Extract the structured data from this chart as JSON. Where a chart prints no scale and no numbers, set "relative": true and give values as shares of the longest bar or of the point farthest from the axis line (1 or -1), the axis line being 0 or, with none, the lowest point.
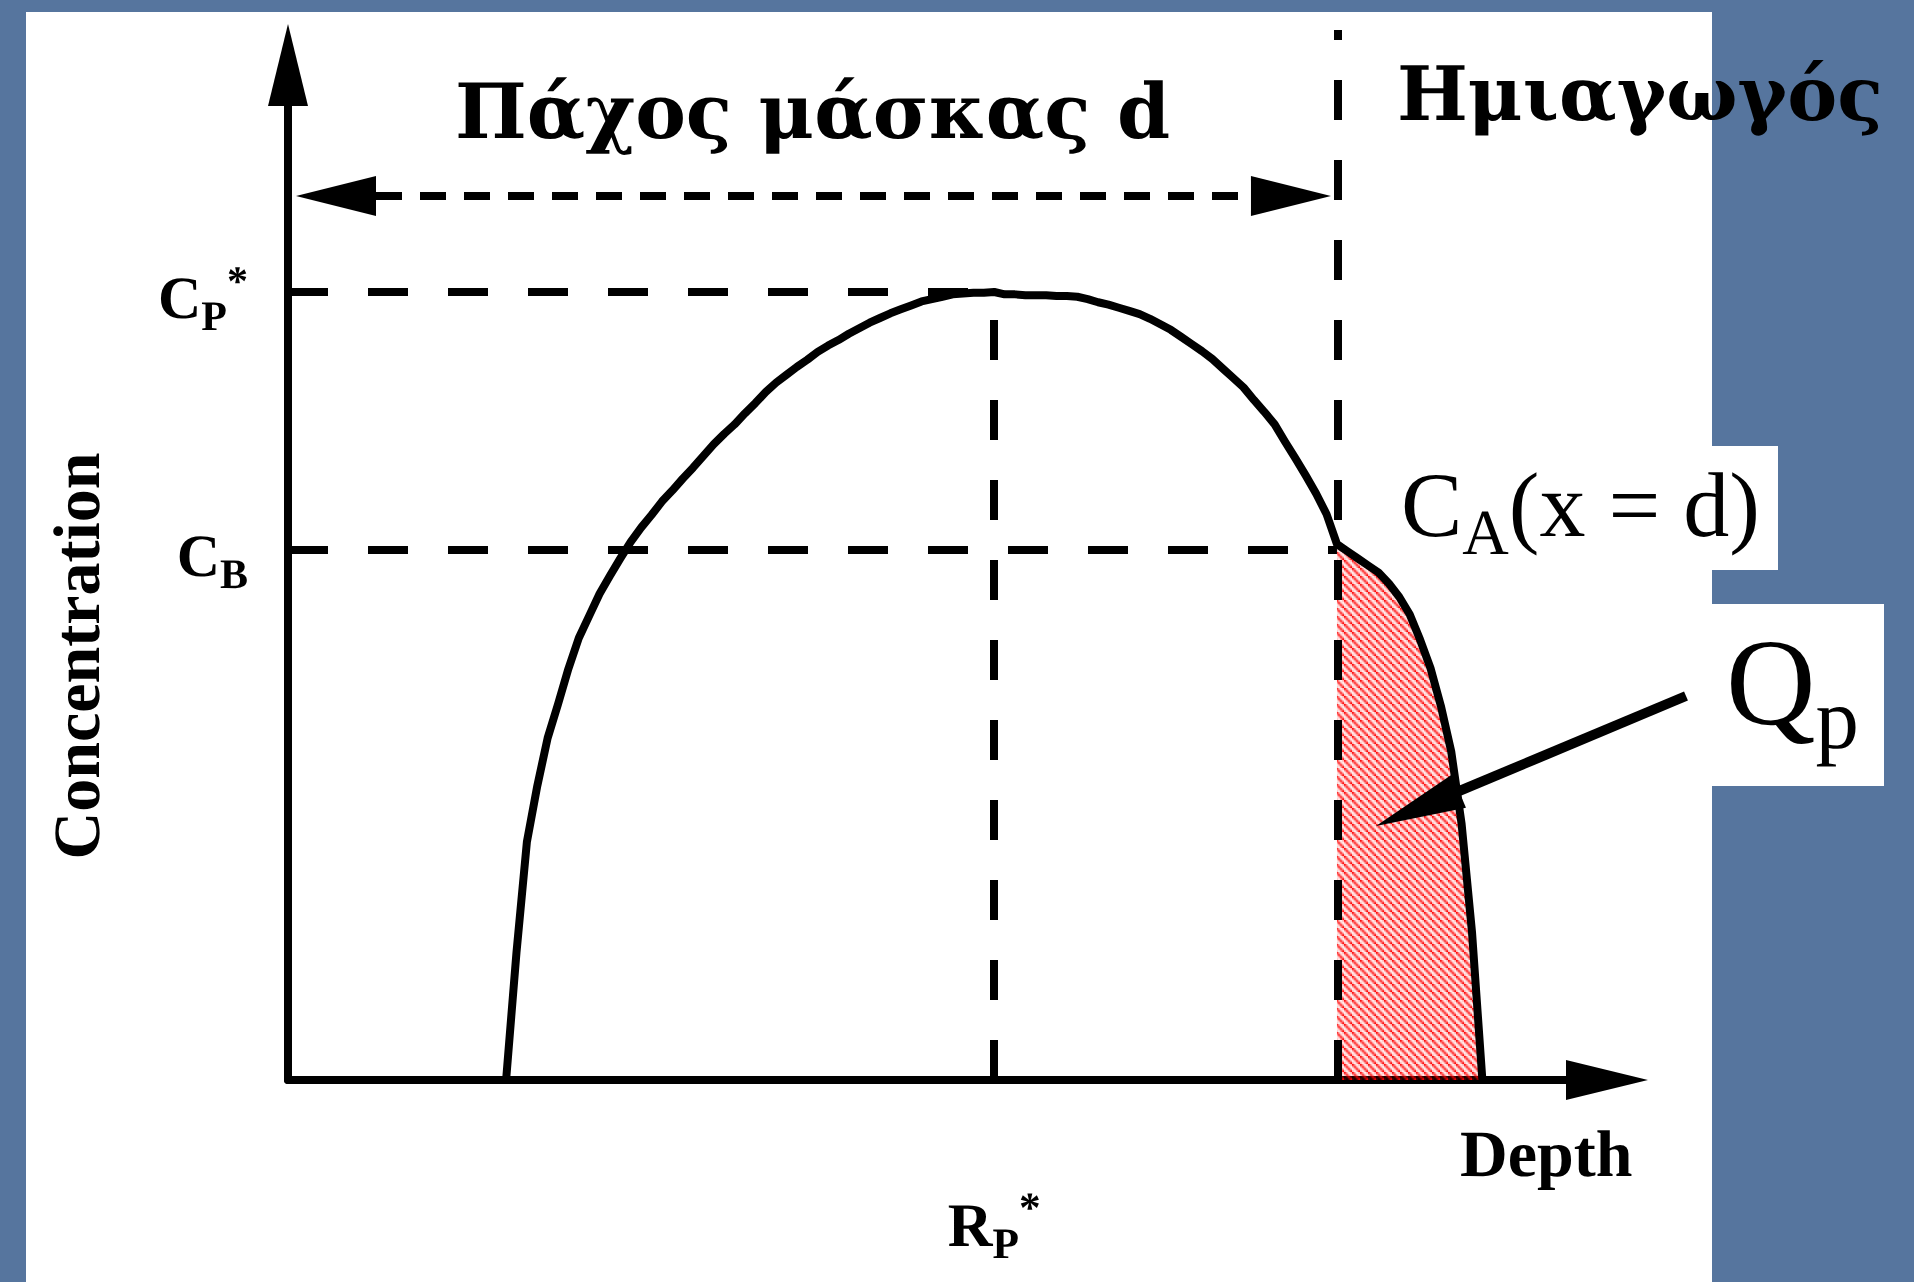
{
  "chart_data": {
    "type": "line",
    "xlabel": "Depth",
    "ylabel": "Concentration",
    "relative": true,
    "marker": "none",
    "line_style": "solid",
    "categories": [
      null,
      null,
      null,
      null,
      null,
      null,
      null,
      null,
      null,
      null,
      null,
      null,
      null,
      null,
      null,
      null,
      null,
      null,
      null,
      null,
      null,
      null,
      null,
      null,
      null,
      null,
      null,
      null,
      null,
      null,
      null,
      null,
      null,
      null,
      null,
      null,
      null,
      null,
      null,
      null,
      null,
      null,
      null,
      null,
      null,
      null,
      null,
      null,
      null,
      null,
      null,
      null,
      null,
      null,
      null,
      null,
      null,
      null,
      null,
      null,
      null,
      null,
      null,
      null,
      null,
      null,
      null,
      null,
      null,
      null,
      null,
      null,
      null,
      null,
      null,
      null,
      null,
      null,
      null,
      null,
      null,
      null,
      null,
      null,
      null,
      null,
      null,
      null,
      null,
      null,
      null,
      null,
      null,
      null,
      null,
      null,
      null,
      null,
      null,
      null,
      null,
      null,
      null,
      null,
      null,
      null,
      null,
      null,
      null,
      null,
      null,
      null,
      null,
      null,
      null,
      null,
      null,
      null,
      null,
      null,
      null,
      null,
      null,
      null,
      null,
      null,
      null,
      null
    ],
    "series": [
      {
        "color": "#000000",
        "values": [
          null,
          null,
          null,
          null,
          null,
          null,
          null,
          null,
          null,
          null,
          null,
          null,
          null,
          null,
          null,
          null,
          null,
          null,
          null,
          null,
          null,
          0,
          0.162,
          0.302,
          0.373,
          0.434,
          0.477,
          0.522,
          0.561,
          0.589,
          0.617,
          0.64,
          0.662,
          0.683,
          0.701,
          0.717,
          0.734,
          0.748,
          0.763,
          0.777,
          0.792,
          0.807,
          0.82,
          0.832,
          0.846,
          0.859,
          0.873,
          0.885,
          0.895,
          0.905,
          0.914,
          0.924,
          0.932,
          0.939,
          0.947,
          0.954,
          0.961,
          0.967,
          0.973,
          0.978,
          0.983,
          0.988,
          0.991,
          0.994,
          0.997,
          0.998,
          0.999,
          0.999,
          1,
          0.997,
          0.997,
          0.996,
          0.996,
          0.996,
          0.995,
          0.995,
          0.994,
          0.991,
          0.987,
          0.984,
          0.98,
          0.976,
          0.972,
          0.966,
          0.959,
          0.952,
          0.943,
          0.934,
          0.925,
          0.915,
          0.903,
          0.891,
          0.879,
          0.863,
          0.848,
          0.832,
          0.81,
          0.789,
          0.767,
          0.744,
          0.718,
          0.68,
          0.671,
          0.662,
          0.653,
          0.644,
          0.63,
          0.613,
          0.591,
          0.559,
          0.523,
          0.475,
          0.417,
          0.325,
          0.188,
          0,
          null,
          null,
          null,
          null,
          null,
          null,
          null,
          null,
          null,
          null,
          null,
          null
        ]
      },
      {
        "type": "area",
        "color": "#ff0000",
        "values": [
          null,
          null,
          null,
          null,
          null,
          null,
          null,
          null,
          null,
          null,
          null,
          null,
          null,
          null,
          null,
          null,
          null,
          null,
          null,
          null,
          null,
          null,
          null,
          null,
          null,
          null,
          null,
          null,
          null,
          null,
          null,
          null,
          null,
          null,
          null,
          null,
          null,
          null,
          null,
          null,
          null,
          null,
          null,
          null,
          null,
          null,
          null,
          null,
          null,
          null,
          null,
          null,
          null,
          null,
          null,
          null,
          null,
          null,
          null,
          null,
          null,
          null,
          null,
          null,
          null,
          null,
          null,
          null,
          null,
          null,
          null,
          null,
          null,
          null,
          null,
          null,
          null,
          null,
          null,
          null,
          null,
          null,
          null,
          null,
          null,
          null,
          null,
          null,
          null,
          null,
          null,
          null,
          null,
          null,
          null,
          null,
          null,
          null,
          null,
          null,
          null,
          0.68,
          0.671,
          0.662,
          0.653,
          0.644,
          0.63,
          0.613,
          0.591,
          0.559,
          0.523,
          0.475,
          0.417,
          0.325,
          0.188,
          0,
          null,
          null,
          null,
          null,
          null,
          null,
          null,
          null,
          null,
          null,
          null,
          null
        ]
      }
    ],
    "ref_lines": [
      {
        "axis": "y",
        "value": 1,
        "label": "C$_{P}$$^{*}$",
        "line_style": "dashed"
      },
      {
        "axis": "y",
        "value": 0.673,
        "label": "C$_{B}$",
        "line_style": "dashed"
      }
    ],
    "annotations": [
      "Πάχος μάσκας d",
      "Ημιαγωγός",
      "C$_{A}$(x = d)",
      "Q$_{p}$",
      "R$_{P}$$^{*}$"
    ]
  }
}
